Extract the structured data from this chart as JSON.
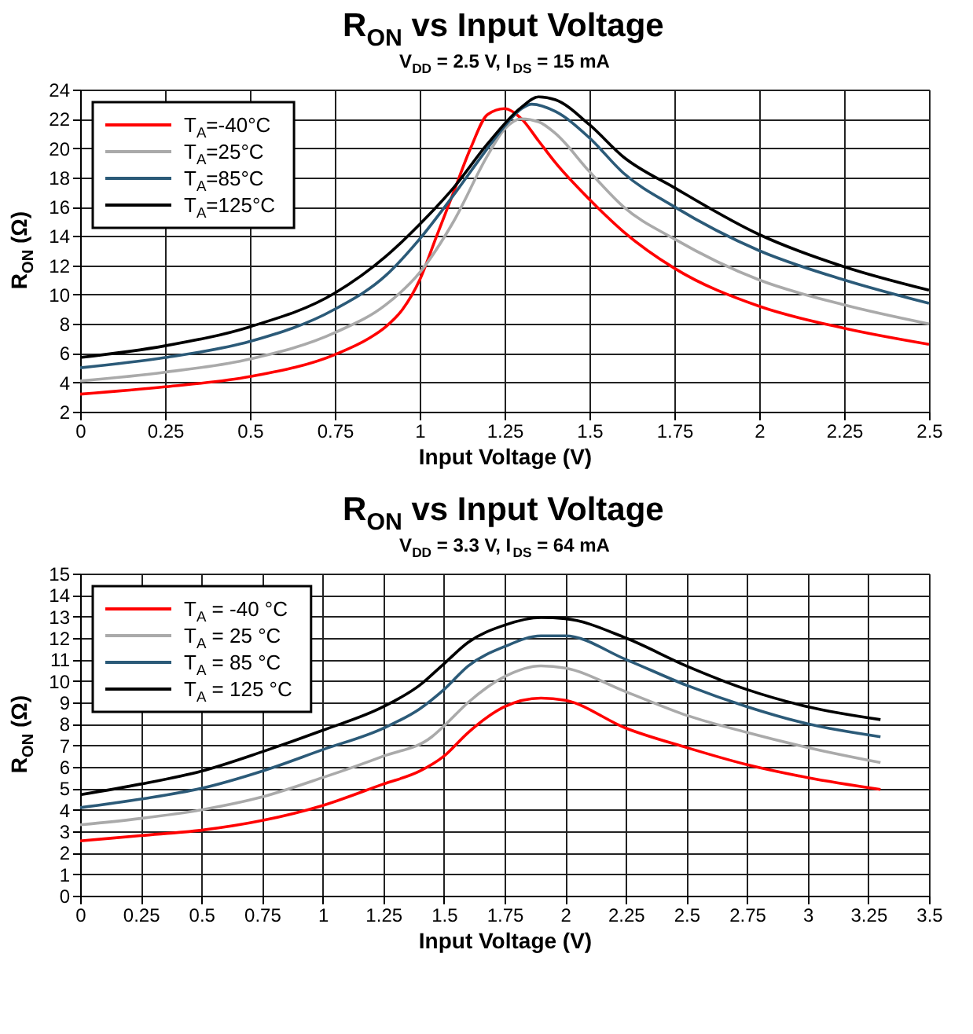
{
  "chart_data": [
    {
      "type": "line",
      "title": "R$_{ON}$ vs Input Voltage",
      "subtitle": "V$_{DD}$ = 2.5 V, I$_{DS}$ = 15 mA",
      "xlabel": "Input Voltage (V)",
      "ylabel": "R$_{ON}$ (Ω)",
      "xlim": [
        0,
        2.5
      ],
      "xticks": [
        0,
        0.25,
        0.5,
        0.75,
        1,
        1.25,
        1.5,
        1.75,
        2,
        2.25,
        2.5
      ],
      "ylim": [
        2,
        24
      ],
      "yticks": [
        2,
        4,
        6,
        8,
        10,
        12,
        14,
        16,
        18,
        20,
        22,
        24
      ],
      "grid": true,
      "legend": "top left",
      "marker": "none",
      "line_style": "solid",
      "series": [
        {
          "name": "T$_{A}$=-40°C",
          "color": "#ff0000",
          "x": [
            0,
            0.25,
            0.5,
            0.75,
            0.85,
            0.9,
            0.95,
            1.0,
            1.05,
            1.1,
            1.15,
            1.2,
            1.25,
            1.3,
            1.35,
            1.4,
            1.5,
            1.6,
            1.75,
            2.0,
            2.25,
            2.5
          ],
          "values": [
            3.2,
            3.7,
            4.4,
            5.9,
            7,
            7.8,
            9,
            11,
            14,
            17,
            20,
            22.3,
            22.7,
            22,
            20.5,
            19,
            16.5,
            14.3,
            11.8,
            9.2,
            7.7,
            6.6
          ]
        },
        {
          "name": "T$_{A}$=25°C",
          "color": "#aaaaaa",
          "x": [
            0,
            0.25,
            0.5,
            0.75,
            0.9,
            1.0,
            1.1,
            1.2,
            1.25,
            1.3,
            1.35,
            1.4,
            1.5,
            1.6,
            1.75,
            2.0,
            2.25,
            2.5
          ],
          "values": [
            4.1,
            4.7,
            5.6,
            7.4,
            9.3,
            11.5,
            15,
            19.5,
            21.3,
            22,
            21.8,
            21,
            18.4,
            16,
            13.8,
            11,
            9.3,
            8.0
          ]
        },
        {
          "name": "T$_{A}$=85°C",
          "color": "#2b5a78",
          "x": [
            0,
            0.25,
            0.5,
            0.75,
            0.9,
            1.0,
            1.1,
            1.2,
            1.25,
            1.3,
            1.33,
            1.4,
            1.5,
            1.6,
            1.75,
            2.0,
            2.25,
            2.5
          ],
          "values": [
            5.0,
            5.7,
            6.8,
            9.0,
            11.3,
            13.8,
            16.8,
            20,
            21.5,
            22.7,
            23.0,
            22.5,
            20.7,
            18.3,
            16,
            13,
            11,
            9.4
          ]
        },
        {
          "name": "T$_{A}$=125°C",
          "color": "#000000",
          "x": [
            0,
            0.25,
            0.5,
            0.75,
            0.9,
            1.0,
            1.1,
            1.2,
            1.3,
            1.35,
            1.4,
            1.5,
            1.6,
            1.75,
            2.0,
            2.25,
            2.5
          ],
          "values": [
            5.7,
            6.5,
            7.8,
            10.1,
            12.6,
            14.8,
            17.3,
            20.3,
            22.8,
            23.5,
            23.3,
            21.6,
            19.4,
            17.3,
            14.1,
            11.9,
            10.3
          ]
        }
      ]
    },
    {
      "type": "line",
      "title": "R$_{ON}$ vs Input Voltage",
      "subtitle": "V$_{DD}$ = 3.3 V, I$_{DS}$ = 64 mA",
      "xlabel": "Input Voltage (V)",
      "ylabel": "R$_{ON}$ (Ω)",
      "xlim": [
        0,
        3.5
      ],
      "xticks": [
        0,
        0.25,
        0.5,
        0.75,
        1,
        1.25,
        1.5,
        1.75,
        2,
        2.25,
        2.5,
        2.75,
        3,
        3.25,
        3.5
      ],
      "ylim": [
        0,
        15
      ],
      "yticks": [
        0,
        1,
        2,
        3,
        4,
        5,
        6,
        7,
        8,
        9,
        10,
        11,
        12,
        13,
        14,
        15
      ],
      "grid": true,
      "legend": "top left",
      "marker": "none",
      "line_style": "solid",
      "series": [
        {
          "name": "T$_{A}$ = -40 °C",
          "color": "#ff0000",
          "x": [
            0,
            0.25,
            0.5,
            0.75,
            1.0,
            1.25,
            1.4,
            1.5,
            1.6,
            1.75,
            1.9,
            2.0,
            2.25,
            2.5,
            2.75,
            3.0,
            3.3
          ],
          "values": [
            2.55,
            2.8,
            3.05,
            3.5,
            4.2,
            5.2,
            5.8,
            6.5,
            7.6,
            8.8,
            9.2,
            9.1,
            7.8,
            6.9,
            6.1,
            5.5,
            4.95
          ]
        },
        {
          "name": "T$_{A}$ = 25 °C",
          "color": "#aaaaaa",
          "x": [
            0,
            0.25,
            0.5,
            0.75,
            1.0,
            1.25,
            1.45,
            1.5,
            1.6,
            1.75,
            1.9,
            2.0,
            2.25,
            2.5,
            2.75,
            3.0,
            3.3
          ],
          "values": [
            3.3,
            3.6,
            4.0,
            4.6,
            5.5,
            6.5,
            7.4,
            7.9,
            9,
            10.2,
            10.7,
            10.6,
            9.5,
            8.4,
            7.6,
            6.9,
            6.2
          ]
        },
        {
          "name": "T$_{A}$ = 85 °C",
          "color": "#2b5a78",
          "x": [
            0,
            0.25,
            0.5,
            0.75,
            1.0,
            1.25,
            1.4,
            1.5,
            1.6,
            1.75,
            1.9,
            2.0,
            2.25,
            2.5,
            2.75,
            3.0,
            3.3
          ],
          "values": [
            4.1,
            4.5,
            5.0,
            5.8,
            6.8,
            7.8,
            8.7,
            9.6,
            10.7,
            11.6,
            12.1,
            12.1,
            11.0,
            9.8,
            8.8,
            8.0,
            7.4
          ]
        },
        {
          "name": "T$_{A}$ = 125 °C",
          "color": "#000000",
          "x": [
            0,
            0.25,
            0.5,
            0.75,
            1.0,
            1.25,
            1.4,
            1.5,
            1.6,
            1.75,
            1.9,
            2.0,
            2.25,
            2.5,
            2.75,
            3.0,
            3.3
          ],
          "values": [
            4.7,
            5.2,
            5.8,
            6.7,
            7.7,
            8.8,
            9.8,
            10.8,
            11.8,
            12.6,
            12.95,
            12.9,
            12.0,
            10.7,
            9.6,
            8.8,
            8.2
          ]
        }
      ]
    }
  ]
}
